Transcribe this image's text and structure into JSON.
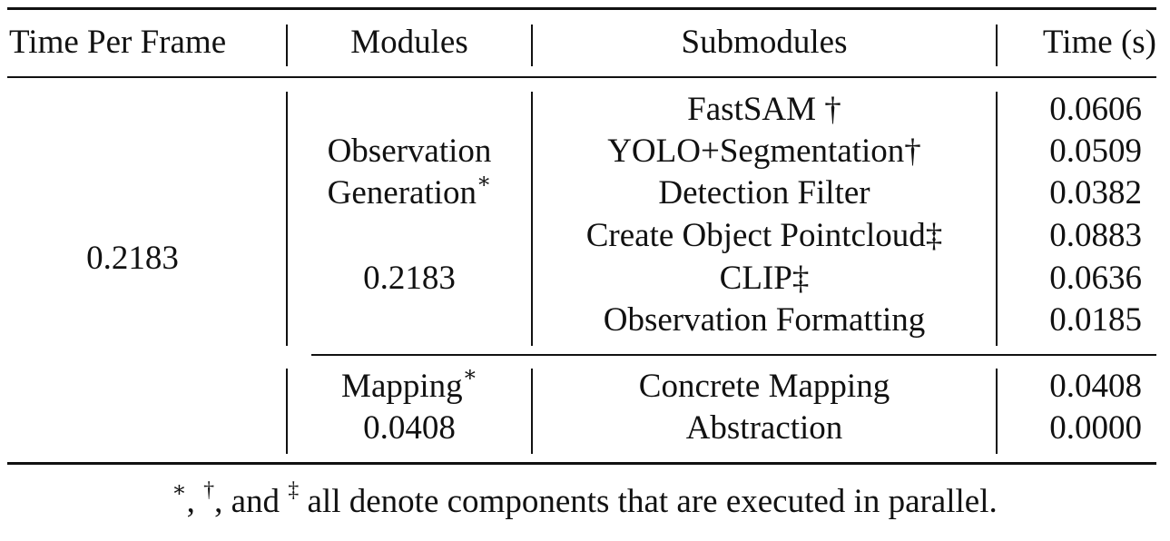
{
  "table": {
    "headers": {
      "time_per_frame": "Time Per Frame",
      "modules": "Modules",
      "submodules": "Submodules",
      "time": "Time (s)"
    },
    "time_per_frame_value": "0.2183",
    "groups": [
      {
        "module_line1": "Observation",
        "module_line2": "Generation",
        "module_mark": "∗",
        "module_time": "0.2183",
        "rows": [
          {
            "submodule": "FastSAM †",
            "time": "0.0606"
          },
          {
            "submodule": "YOLO+Segmentation†",
            "time": "0.0509"
          },
          {
            "submodule": "Detection Filter",
            "time": "0.0382"
          },
          {
            "submodule": "Create Object Pointcloud‡",
            "time": "0.0883"
          },
          {
            "submodule": "CLIP‡",
            "time": "0.0636"
          },
          {
            "submodule": "Observation Formatting",
            "time": "0.0185"
          }
        ]
      },
      {
        "module_line1": "Mapping",
        "module_mark": "∗",
        "module_time": "0.0408",
        "rows": [
          {
            "submodule": "Concrete Mapping",
            "time": "0.0408"
          },
          {
            "submodule": "Abstraction",
            "time": "0.0000"
          }
        ]
      }
    ]
  },
  "footnote": {
    "mark1": "∗",
    "sep1": ", ",
    "mark2": "†",
    "sep2": ", and ",
    "mark3": "‡",
    "text": " all denote components that are executed in parallel."
  }
}
